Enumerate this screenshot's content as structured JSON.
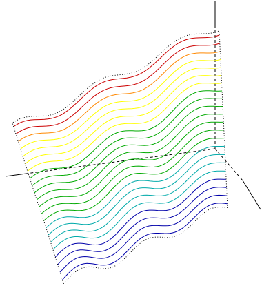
{
  "chart_data": {
    "type": "surface-contour-3d",
    "title": "",
    "xlabel": "",
    "ylabel": "",
    "zlabel": "",
    "grid": false,
    "legend": "none",
    "axes": [
      "x",
      "y",
      "z"
    ],
    "contour_levels": 22,
    "wave_periods_along_surface": 2.5,
    "colormap": [
      "#0000aa",
      "#00aaaa",
      "#00aa00",
      "#ffff00",
      "#cc0000"
    ],
    "color_bands": [
      {
        "color": "#0000aa",
        "count": 4
      },
      {
        "color": "#00aaaa",
        "count": 4
      },
      {
        "color": "#00aa00",
        "count": 7
      },
      {
        "color": "#ffff00",
        "count": 4
      },
      {
        "color": "#ff8800",
        "count": 1
      },
      {
        "color": "#cc0000",
        "count": 2
      }
    ],
    "boundary_style": "dotted",
    "hidden_axis_style": "dashed"
  }
}
